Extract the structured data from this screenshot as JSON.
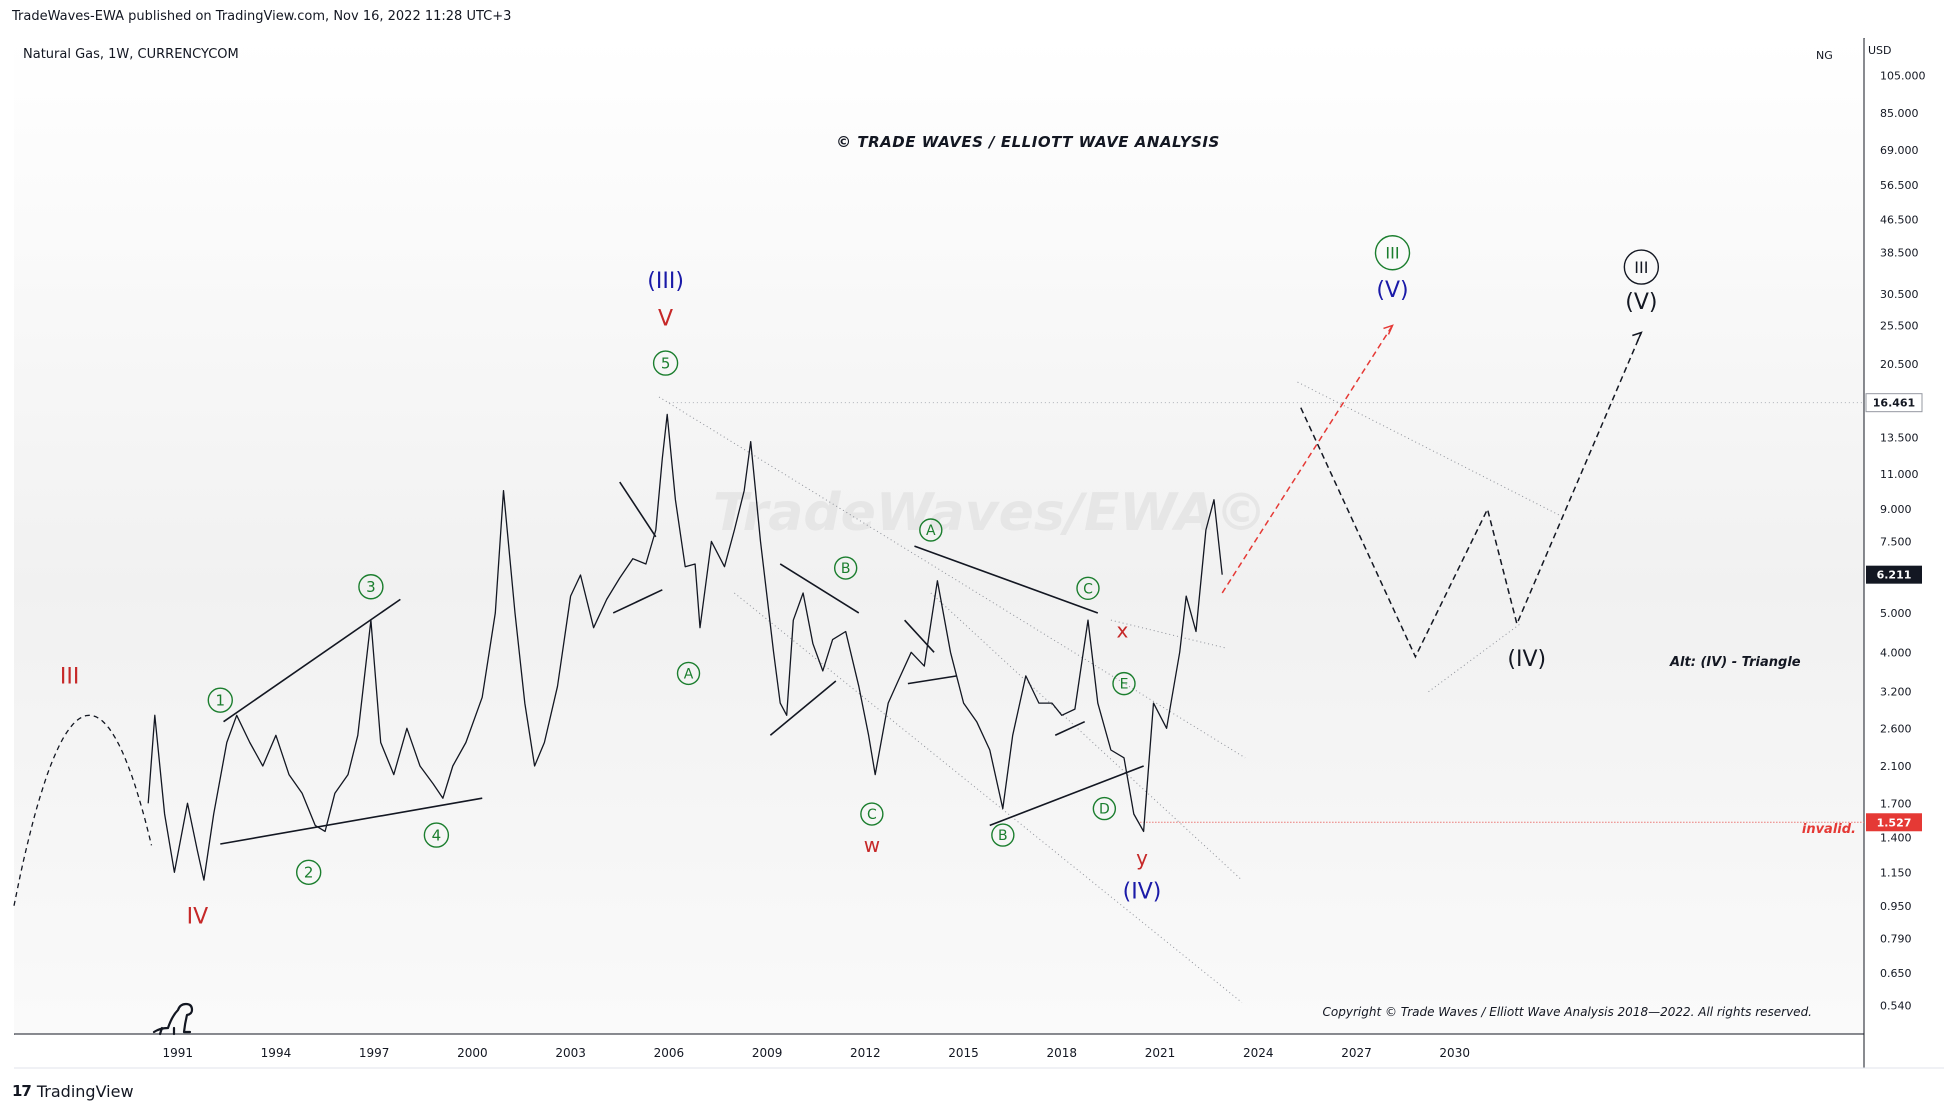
{
  "header": {
    "publisher_line": "TradeWaves-EWA published on TradingView.com, Nov 16, 2022 11:28 UTC+3"
  },
  "footer": {
    "brand": "TradingView"
  },
  "chart_data": {
    "type": "line",
    "symbol_line": "Natural Gas, 1W, CURRENCYCOM",
    "symbol_short": "NG",
    "watermark": "© TRADE WAVES / ELLIOTT WAVE ANALYSIS",
    "background_watermark": "TradeWaves/EWA©",
    "copyright": "Copyright © Trade Waves / Elliott Wave Analysis 2018—2022. All rights reserved.",
    "currency": "USD",
    "y_scale": "log",
    "ylim": [
      0.46,
      130
    ],
    "xlim": [
      1986.0,
      2042.5
    ],
    "x_ticks": [
      "1991",
      "1994",
      "1997",
      "2000",
      "2003",
      "2006",
      "2009",
      "2012",
      "2015",
      "2018",
      "2021",
      "2024",
      "2027",
      "2030"
    ],
    "y_ticks": [
      "105.000",
      "85.000",
      "69.000",
      "56.500",
      "46.500",
      "38.500",
      "30.500",
      "25.500",
      "20.500",
      "16.461",
      "13.500",
      "11.000",
      "9.000",
      "7.500",
      "6.211",
      "5.000",
      "4.000",
      "3.200",
      "2.600",
      "2.100",
      "1.700",
      "1.527",
      "1.400",
      "1.150",
      "0.950",
      "0.790",
      "0.650",
      "0.540"
    ],
    "last_price": 6.211,
    "high_level": 16.461,
    "invalidation_level": 1.527,
    "invalidation_label": "invalid.",
    "alt_label": "Alt: (IV) - Triangle",
    "series": [
      {
        "values_xy": [
          [
            1990.1,
            1.7
          ],
          [
            1990.3,
            2.8
          ],
          [
            1990.6,
            1.6
          ],
          [
            1990.9,
            1.15
          ],
          [
            1991.3,
            1.7
          ],
          [
            1991.6,
            1.3
          ],
          [
            1991.8,
            1.1
          ],
          [
            1992.1,
            1.6
          ],
          [
            1992.5,
            2.4
          ],
          [
            1992.8,
            2.8
          ],
          [
            1993.2,
            2.4
          ],
          [
            1993.6,
            2.1
          ],
          [
            1994.0,
            2.5
          ],
          [
            1994.4,
            2.0
          ],
          [
            1994.8,
            1.8
          ],
          [
            1995.2,
            1.5
          ],
          [
            1995.5,
            1.45
          ],
          [
            1995.8,
            1.8
          ],
          [
            1996.2,
            2.0
          ],
          [
            1996.5,
            2.5
          ],
          [
            1996.9,
            4.8
          ],
          [
            1997.2,
            2.4
          ],
          [
            1997.6,
            2.0
          ],
          [
            1998.0,
            2.6
          ],
          [
            1998.4,
            2.1
          ],
          [
            1998.8,
            1.9
          ],
          [
            1999.1,
            1.75
          ],
          [
            1999.4,
            2.1
          ],
          [
            1999.8,
            2.4
          ],
          [
            2000.3,
            3.1
          ],
          [
            2000.7,
            5.0
          ],
          [
            2000.95,
            10.0
          ],
          [
            2001.3,
            5.0
          ],
          [
            2001.6,
            3.0
          ],
          [
            2001.9,
            2.1
          ],
          [
            2002.2,
            2.4
          ],
          [
            2002.6,
            3.3
          ],
          [
            2003.0,
            5.5
          ],
          [
            2003.3,
            6.2
          ],
          [
            2003.7,
            4.6
          ],
          [
            2004.1,
            5.4
          ],
          [
            2004.5,
            6.1
          ],
          [
            2004.9,
            6.8
          ],
          [
            2005.3,
            6.6
          ],
          [
            2005.6,
            8.0
          ],
          [
            2005.8,
            12.0
          ],
          [
            2005.95,
            15.4
          ],
          [
            2006.2,
            9.5
          ],
          [
            2006.5,
            6.5
          ],
          [
            2006.8,
            6.6
          ],
          [
            2006.95,
            4.6
          ],
          [
            2007.3,
            7.5
          ],
          [
            2007.7,
            6.5
          ],
          [
            2008.0,
            8.0
          ],
          [
            2008.3,
            10.0
          ],
          [
            2008.5,
            13.2
          ],
          [
            2008.8,
            7.5
          ],
          [
            2009.2,
            4.0
          ],
          [
            2009.4,
            3.0
          ],
          [
            2009.6,
            2.8
          ],
          [
            2009.8,
            4.8
          ],
          [
            2010.1,
            5.6
          ],
          [
            2010.4,
            4.2
          ],
          [
            2010.7,
            3.6
          ],
          [
            2011.0,
            4.3
          ],
          [
            2011.4,
            4.5
          ],
          [
            2011.8,
            3.3
          ],
          [
            2012.1,
            2.5
          ],
          [
            2012.3,
            2.0
          ],
          [
            2012.7,
            3.0
          ],
          [
            2013.0,
            3.4
          ],
          [
            2013.4,
            4.0
          ],
          [
            2013.8,
            3.7
          ],
          [
            2014.2,
            6.0
          ],
          [
            2014.6,
            4.0
          ],
          [
            2015.0,
            3.0
          ],
          [
            2015.4,
            2.7
          ],
          [
            2015.8,
            2.3
          ],
          [
            2016.2,
            1.65
          ],
          [
            2016.5,
            2.5
          ],
          [
            2016.9,
            3.5
          ],
          [
            2017.3,
            3.0
          ],
          [
            2017.7,
            3.0
          ],
          [
            2018.0,
            2.8
          ],
          [
            2018.4,
            2.9
          ],
          [
            2018.8,
            4.8
          ],
          [
            2019.1,
            3.0
          ],
          [
            2019.5,
            2.3
          ],
          [
            2019.9,
            2.2
          ],
          [
            2020.2,
            1.6
          ],
          [
            2020.5,
            1.45
          ],
          [
            2020.8,
            3.0
          ],
          [
            2021.2,
            2.6
          ],
          [
            2021.6,
            4.0
          ],
          [
            2021.8,
            5.5
          ],
          [
            2022.1,
            4.5
          ],
          [
            2022.4,
            8.0
          ],
          [
            2022.65,
            9.5
          ],
          [
            2022.9,
            6.211
          ]
        ]
      }
    ],
    "wave_labels": {
      "III_red": "III",
      "IV_red": "IV",
      "c1": "1",
      "c2": "2",
      "c3": "3",
      "c4": "4",
      "c5": "5",
      "III_paren": "(III)",
      "V_red": "V",
      "A1": "A",
      "B1": "B",
      "C1": "C",
      "w": "w",
      "A2": "A",
      "B2": "B",
      "C2": "C",
      "D2": "D",
      "E2": "E",
      "x": "x",
      "y": "y",
      "IV_paren": "(IV)",
      "III_circ_green": "III",
      "V_paren_blue": "(V)",
      "III_circ_black": "III",
      "V_paren_black": "(V)",
      "IV_paren_black": "(IV)"
    },
    "projection_primary": [
      [
        2022.9,
        5.6
      ],
      [
        2028.1,
        25.5
      ]
    ],
    "projection_alt": [
      [
        2025.3,
        16.0
      ],
      [
        2028.8,
        3.9
      ],
      [
        2031.0,
        9.0
      ],
      [
        2031.9,
        4.7
      ],
      [
        2035.7,
        24.5
      ]
    ]
  }
}
